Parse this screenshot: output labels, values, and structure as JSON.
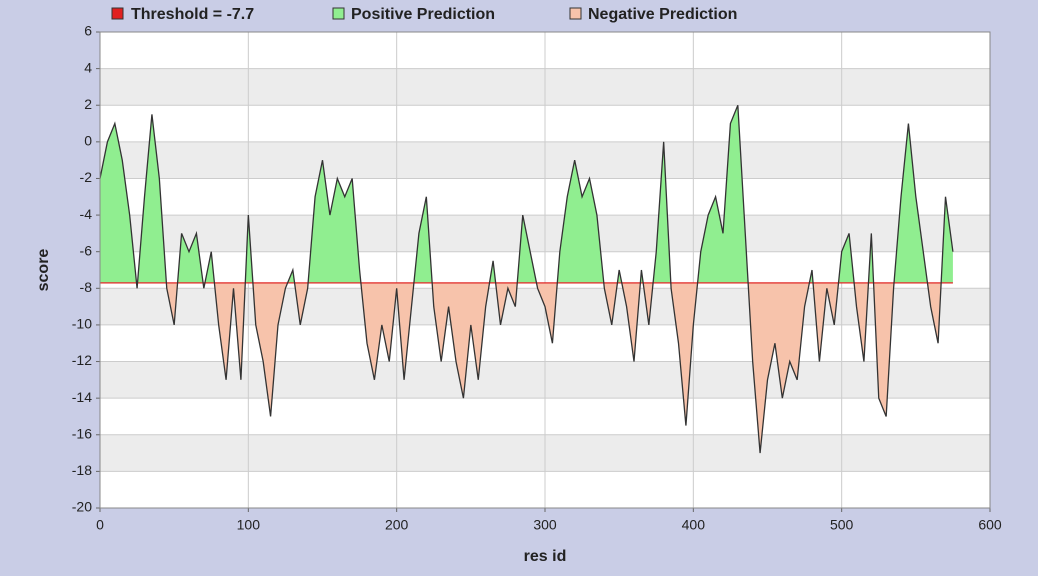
{
  "chart_data": {
    "type": "area",
    "xlabel": "res id",
    "ylabel": "score",
    "threshold": -7.7,
    "legend": {
      "threshold": "Threshold  = -7.7",
      "positive": "Positive Prediction",
      "negative": "Negative Prediction"
    },
    "colors": {
      "threshold": "#e02020",
      "positive": "#90ee90",
      "negative": "#f7c3ab",
      "line": "#333333"
    },
    "x": [
      0,
      5,
      10,
      15,
      20,
      25,
      30,
      35,
      40,
      45,
      50,
      55,
      60,
      65,
      70,
      75,
      80,
      85,
      90,
      95,
      100,
      105,
      110,
      115,
      120,
      125,
      130,
      135,
      140,
      145,
      150,
      155,
      160,
      165,
      170,
      175,
      180,
      185,
      190,
      195,
      200,
      205,
      210,
      215,
      220,
      225,
      230,
      235,
      240,
      245,
      250,
      255,
      260,
      265,
      270,
      275,
      280,
      285,
      290,
      295,
      300,
      305,
      310,
      315,
      320,
      325,
      330,
      335,
      340,
      345,
      350,
      355,
      360,
      365,
      370,
      375,
      380,
      385,
      390,
      395,
      400,
      405,
      410,
      415,
      420,
      425,
      430,
      435,
      440,
      445,
      450,
      455,
      460,
      465,
      470,
      475,
      480,
      485,
      490,
      495,
      500,
      505,
      510,
      515,
      520,
      525,
      530,
      535,
      540,
      545,
      550,
      555,
      560,
      565,
      570,
      575
    ],
    "values": [
      -2,
      0,
      1,
      -1,
      -4,
      -8,
      -3,
      1.5,
      -2,
      -8,
      -10,
      -5,
      -6,
      -5,
      -8,
      -6,
      -10,
      -13,
      -8,
      -13,
      -4,
      -10,
      -12,
      -15,
      -10,
      -8,
      -7,
      -10,
      -8,
      -3,
      -1,
      -4,
      -2,
      -3,
      -2,
      -7,
      -11,
      -13,
      -10,
      -12,
      -8,
      -13,
      -9,
      -5,
      -3,
      -9,
      -12,
      -9,
      -12,
      -14,
      -10,
      -13,
      -9,
      -6.5,
      -10,
      -8,
      -9,
      -4,
      -6,
      -8,
      -9,
      -11,
      -6,
      -3,
      -1,
      -3,
      -2,
      -4,
      -8,
      -10,
      -7,
      -9,
      -12,
      -7,
      -10,
      -6,
      0,
      -8,
      -11,
      -15.5,
      -10,
      -6,
      -4,
      -3,
      -5,
      1,
      2,
      -5,
      -12,
      -17,
      -13,
      -11,
      -14,
      -12,
      -13,
      -9,
      -7,
      -12,
      -8,
      -10,
      -6,
      -5,
      -9,
      -12,
      -5,
      -14,
      -15,
      -8,
      -3,
      1,
      -3,
      -6,
      -9,
      -11,
      -3,
      -6
    ],
    "xlim": [
      0,
      600
    ],
    "xticks": [
      0,
      100,
      200,
      300,
      400,
      500,
      600
    ],
    "ylim": [
      -20,
      6
    ],
    "yticks": [
      6,
      4,
      2,
      0,
      -2,
      -4,
      -6,
      -8,
      -10,
      -12,
      -14,
      -16,
      -18,
      -20
    ],
    "grid": true
  }
}
